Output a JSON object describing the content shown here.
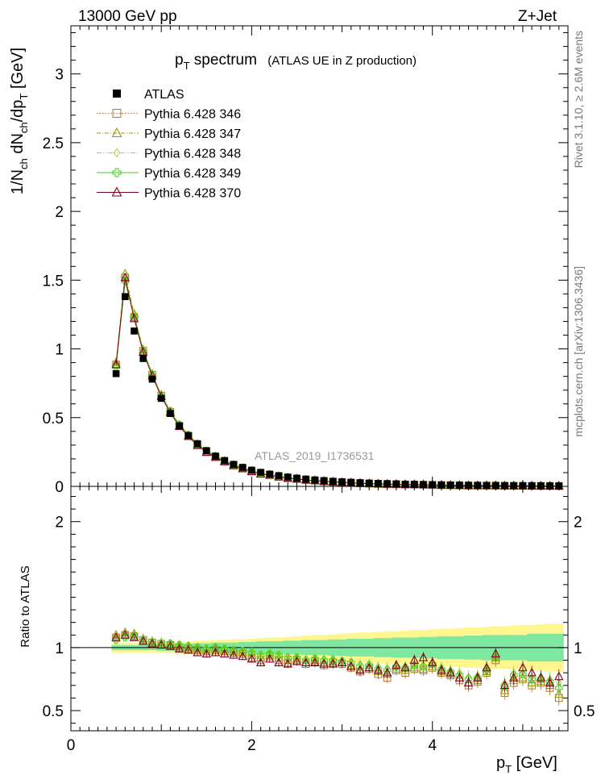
{
  "header": {
    "left": "13000 GeV pp",
    "right": "Z+Jet"
  },
  "side_labels": {
    "right_top": "Rivet 3.1.10, ≥ 2.6M events",
    "right_bottom": "mcplots.cern.ch [arXiv:1306.3436]"
  },
  "chart_data": {
    "type": "scatter",
    "title": "p_T spectrum",
    "title_main": "p",
    "title_sub": "T",
    "title_rest": " spectrum",
    "subtitle": "(ATLAS UE in Z production)",
    "watermark": "ATLAS_2019_I1736531",
    "ylabel": "1/N_ch dN_ch/dp_T [GeV]",
    "ratio_ylabel": "Ratio to ATLAS",
    "xlabel": "p_T [GeV]",
    "xlabel_main": "p",
    "xlabel_sub": "T",
    "xlabel_rest": " [GeV]",
    "xlim": [
      0,
      5.5
    ],
    "ylim": [
      0,
      3.35
    ],
    "ratio_ylim": [
      0.34,
      2.28
    ],
    "x_ticks": [
      "0",
      "2",
      "4"
    ],
    "y_ticks": [
      "0",
      "0.5",
      "1",
      "1.5",
      "2",
      "2.5",
      "3"
    ],
    "ratio_y_ticks": [
      "0.5",
      "1",
      "2"
    ],
    "x": [
      0.5,
      0.6,
      0.7,
      0.8,
      0.9,
      1.0,
      1.1,
      1.2,
      1.3,
      1.4,
      1.5,
      1.6,
      1.7,
      1.8,
      1.9,
      2.0,
      2.1,
      2.2,
      2.3,
      2.4,
      2.5,
      2.6,
      2.7,
      2.8,
      2.9,
      3.0,
      3.1,
      3.2,
      3.3,
      3.4,
      3.5,
      3.6,
      3.7,
      3.8,
      3.9,
      4.0,
      4.1,
      4.2,
      4.3,
      4.4,
      4.5,
      4.6,
      4.7,
      4.8,
      4.9,
      5.0,
      5.1,
      5.2,
      5.3,
      5.4
    ],
    "series": [
      {
        "name": "ATLAS",
        "color": "#000000",
        "marker": "filled-square",
        "values": [
          0.82,
          1.38,
          1.13,
          0.93,
          0.78,
          0.64,
          0.53,
          0.44,
          0.37,
          0.31,
          0.26,
          0.22,
          0.188,
          0.16,
          0.138,
          0.118,
          0.102,
          0.089,
          0.078,
          0.068,
          0.06,
          0.053,
          0.047,
          0.042,
          0.037,
          0.033,
          0.03,
          0.027,
          0.024,
          0.022,
          0.02,
          0.018,
          0.016,
          0.015,
          0.0135,
          0.0122,
          0.011,
          0.01,
          0.0091,
          0.0083,
          0.0076,
          0.0069,
          0.0063,
          0.0058,
          0.0053,
          0.0049,
          0.0045,
          0.0041,
          0.0038,
          0.0035
        ]
      },
      {
        "name": "Pythia 6.428 346",
        "color": "#b87333",
        "marker": "open-square",
        "ratio": [
          1.08,
          1.1,
          1.09,
          1.06,
          1.04,
          1.03,
          1.02,
          1.0,
          0.99,
          0.98,
          0.97,
          0.98,
          0.97,
          0.96,
          0.95,
          0.92,
          0.9,
          0.93,
          0.9,
          0.88,
          0.9,
          0.87,
          0.89,
          0.86,
          0.88,
          0.87,
          0.84,
          0.81,
          0.83,
          0.79,
          0.76,
          0.82,
          0.8,
          0.83,
          0.82,
          0.84,
          0.8,
          0.78,
          0.74,
          0.7,
          0.73,
          0.8,
          0.9,
          0.64,
          0.72,
          0.75,
          0.7,
          0.72,
          0.68,
          0.6
        ]
      },
      {
        "name": "Pythia 6.428 347",
        "color": "#9a9a00",
        "marker": "open-triangle",
        "ratio": [
          1.1,
          1.12,
          1.11,
          1.07,
          1.05,
          1.04,
          1.03,
          1.01,
          1.0,
          0.99,
          0.98,
          0.99,
          0.98,
          0.97,
          0.96,
          0.94,
          0.92,
          0.94,
          0.92,
          0.9,
          0.91,
          0.88,
          0.9,
          0.88,
          0.89,
          0.88,
          0.86,
          0.83,
          0.84,
          0.81,
          0.79,
          0.83,
          0.82,
          0.84,
          0.83,
          0.85,
          0.81,
          0.79,
          0.76,
          0.72,
          0.74,
          0.81,
          0.92,
          0.66,
          0.74,
          0.76,
          0.72,
          0.73,
          0.7,
          0.63
        ]
      },
      {
        "name": "Pythia 6.428 348",
        "color": "#99dd33",
        "marker": "open-diamond",
        "ratio": [
          1.07,
          1.09,
          1.1,
          1.07,
          1.05,
          1.04,
          1.04,
          1.03,
          1.02,
          1.01,
          1.0,
          1.01,
          1.0,
          0.99,
          0.98,
          0.97,
          0.95,
          0.96,
          0.95,
          0.93,
          0.93,
          0.91,
          0.92,
          0.91,
          0.91,
          0.9,
          0.89,
          0.87,
          0.87,
          0.85,
          0.84,
          0.86,
          0.85,
          0.87,
          0.86,
          0.88,
          0.84,
          0.82,
          0.8,
          0.77,
          0.78,
          0.84,
          0.93,
          0.72,
          0.8,
          0.8,
          0.77,
          0.77,
          0.75,
          0.72
        ]
      },
      {
        "name": "Pythia 6.428 349",
        "color": "#44cc22",
        "marker": "open-cross",
        "ratio": [
          1.06,
          1.08,
          1.09,
          1.06,
          1.04,
          1.03,
          1.03,
          1.02,
          1.01,
          1.0,
          0.99,
          1.0,
          0.99,
          0.98,
          0.97,
          0.96,
          0.94,
          0.95,
          0.94,
          0.92,
          0.92,
          0.9,
          0.91,
          0.9,
          0.9,
          0.89,
          0.88,
          0.85,
          0.86,
          0.83,
          0.82,
          0.85,
          0.84,
          0.86,
          0.85,
          0.87,
          0.83,
          0.81,
          0.78,
          0.75,
          0.76,
          0.82,
          0.92,
          0.7,
          0.78,
          0.79,
          0.75,
          0.75,
          0.73,
          0.68
        ]
      },
      {
        "name": "Pythia 6.428 370",
        "color": "#800020",
        "marker": "open-triangle",
        "ratio": [
          1.08,
          1.1,
          1.08,
          1.05,
          1.03,
          1.02,
          1.01,
          0.99,
          0.98,
          0.96,
          0.95,
          0.96,
          0.95,
          0.94,
          0.93,
          0.91,
          0.88,
          0.91,
          0.88,
          0.87,
          0.89,
          0.88,
          0.88,
          0.87,
          0.87,
          0.88,
          0.85,
          0.82,
          0.84,
          0.82,
          0.8,
          0.86,
          0.84,
          0.9,
          0.92,
          0.88,
          0.82,
          0.8,
          0.76,
          0.72,
          0.76,
          0.84,
          0.95,
          0.7,
          0.76,
          0.84,
          0.8,
          0.76,
          0.72,
          0.77
        ]
      }
    ],
    "uncertainty_bands": {
      "inner_halfwidth": [
        0.02,
        0.02,
        0.02,
        0.02,
        0.02,
        0.025,
        0.025,
        0.03,
        0.03,
        0.035,
        0.035,
        0.04,
        0.04,
        0.04,
        0.045,
        0.045,
        0.05,
        0.05,
        0.05,
        0.055,
        0.055,
        0.06,
        0.06,
        0.06,
        0.065,
        0.065,
        0.07,
        0.07,
        0.07,
        0.075,
        0.075,
        0.08,
        0.08,
        0.08,
        0.085,
        0.085,
        0.09,
        0.09,
        0.09,
        0.095,
        0.095,
        0.1,
        0.1,
        0.1,
        0.1,
        0.1,
        0.11,
        0.11,
        0.11,
        0.11
      ],
      "outer_halfwidth": [
        0.04,
        0.04,
        0.04,
        0.04,
        0.04,
        0.045,
        0.045,
        0.05,
        0.05,
        0.055,
        0.055,
        0.06,
        0.06,
        0.065,
        0.065,
        0.07,
        0.075,
        0.08,
        0.08,
        0.085,
        0.09,
        0.095,
        0.1,
        0.1,
        0.105,
        0.11,
        0.115,
        0.12,
        0.12,
        0.125,
        0.13,
        0.13,
        0.135,
        0.14,
        0.14,
        0.145,
        0.15,
        0.15,
        0.155,
        0.16,
        0.16,
        0.165,
        0.17,
        0.17,
        0.175,
        0.18,
        0.18,
        0.185,
        0.19,
        0.19
      ],
      "inner_color": "#7fe8a0",
      "outer_color": "#fff68f"
    },
    "grid": false,
    "legend_position": "top-left"
  }
}
